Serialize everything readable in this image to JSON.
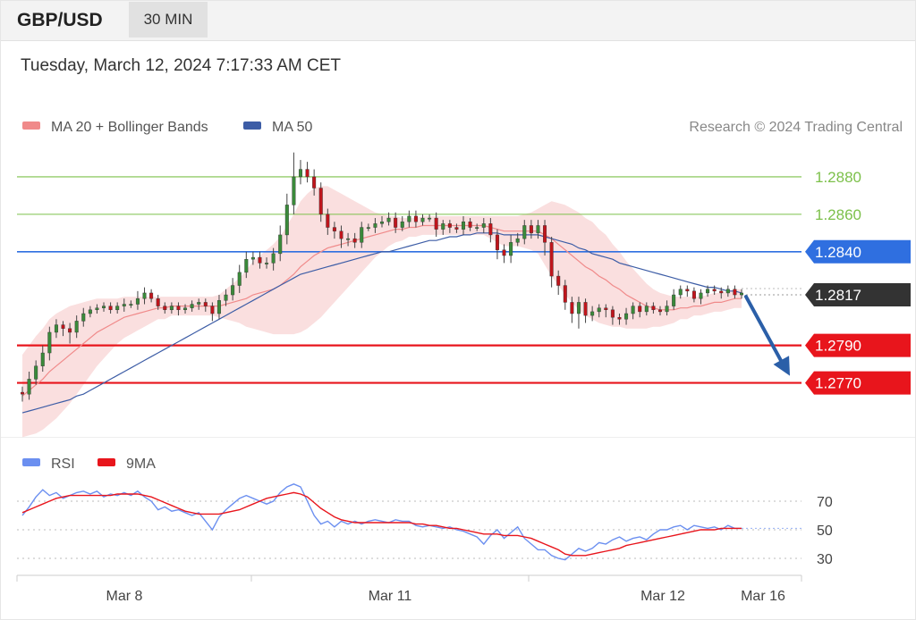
{
  "header": {
    "pair": "GBP/USD",
    "timeframe": "30 MIN"
  },
  "timestamp": "Tuesday, March 12, 2024 7:17:33 AM CET",
  "legend": {
    "ma20": "MA 20 + Bollinger Bands",
    "ma50": "MA 50",
    "credit": "Research © 2024 Trading Central",
    "rsi": "RSI",
    "ma9": "9MA"
  },
  "colors": {
    "resistance": "#7cc04a",
    "pivot": "#2f6fe0",
    "support": "#e8151c",
    "current": "#333333",
    "bollinger": "#f6c9c9",
    "ma20": "#f08a8a",
    "ma50": "#3d5da6",
    "rsi": "#6b8ff0",
    "ma9": "#e8151c",
    "candle_up": "#3a8a3a",
    "candle_down": "#c0151c",
    "arrow": "#2b5fa8"
  },
  "chart_data": [
    {
      "type": "candlestick",
      "title": "GBP/USD",
      "ylim": [
        1.2745,
        1.29
      ],
      "x_labels": [
        "Mar 8",
        "Mar 11",
        "Mar 12",
        "Mar 16"
      ],
      "levels": [
        {
          "value": 1.288,
          "label": "1.2880",
          "kind": "resistance"
        },
        {
          "value": 1.286,
          "label": "1.2860",
          "kind": "resistance"
        },
        {
          "value": 1.284,
          "label": "1.2840",
          "kind": "pivot"
        },
        {
          "value": 1.2817,
          "label": "1.2817",
          "kind": "current"
        },
        {
          "value": 1.279,
          "label": "1.2790",
          "kind": "support"
        },
        {
          "value": 1.277,
          "label": "1.2770",
          "kind": "support"
        }
      ],
      "close": [
        1.2764,
        1.2772,
        1.2779,
        1.2786,
        1.2797,
        1.2801,
        1.2799,
        1.2797,
        1.2803,
        1.2807,
        1.2809,
        1.281,
        1.2811,
        1.2809,
        1.2811,
        1.2812,
        1.2812,
        1.2815,
        1.2818,
        1.2815,
        1.2811,
        1.2809,
        1.2811,
        1.2809,
        1.281,
        1.2812,
        1.2813,
        1.2811,
        1.2807,
        1.2814,
        1.2817,
        1.2822,
        1.2829,
        1.2836,
        1.2837,
        1.2834,
        1.2834,
        1.2839,
        1.2849,
        1.2865,
        1.288,
        1.2884,
        1.288,
        1.2874,
        1.286,
        1.2853,
        1.2851,
        1.2847,
        1.2847,
        1.2845,
        1.2853,
        1.2853,
        1.2855,
        1.2856,
        1.2858,
        1.2853,
        1.2856,
        1.2859,
        1.2856,
        1.2858,
        1.2858,
        1.2852,
        1.2855,
        1.2853,
        1.2852,
        1.2856,
        1.2853,
        1.2853,
        1.2855,
        1.2849,
        1.2841,
        1.2838,
        1.2845,
        1.2847,
        1.2854,
        1.285,
        1.2854,
        1.2845,
        1.2827,
        1.2822,
        1.2813,
        1.2807,
        1.2813,
        1.2806,
        1.2808,
        1.281,
        1.2809,
        1.2805,
        1.2804,
        1.2807,
        1.2811,
        1.2808,
        1.2811,
        1.2809,
        1.2808,
        1.2811,
        1.2817,
        1.282,
        1.2819,
        1.2815,
        1.2818,
        1.282,
        1.2819,
        1.2818,
        1.282,
        1.2817,
        1.2818
      ],
      "open": [
        1.2765,
        1.2764,
        1.2772,
        1.2779,
        1.2786,
        1.2797,
        1.2801,
        1.2799,
        1.2797,
        1.2803,
        1.2807,
        1.2809,
        1.281,
        1.2811,
        1.2809,
        1.2811,
        1.2812,
        1.2812,
        1.2815,
        1.2818,
        1.2815,
        1.2811,
        1.2809,
        1.2811,
        1.2809,
        1.281,
        1.2812,
        1.2813,
        1.2811,
        1.2807,
        1.2814,
        1.2817,
        1.2822,
        1.2829,
        1.2836,
        1.2837,
        1.2834,
        1.2834,
        1.2839,
        1.2849,
        1.2865,
        1.288,
        1.2884,
        1.288,
        1.2874,
        1.286,
        1.2853,
        1.2851,
        1.2847,
        1.2847,
        1.2845,
        1.2853,
        1.2853,
        1.2855,
        1.2856,
        1.2858,
        1.2853,
        1.2856,
        1.2859,
        1.2856,
        1.2858,
        1.2858,
        1.2852,
        1.2855,
        1.2853,
        1.2852,
        1.2856,
        1.2853,
        1.2853,
        1.2855,
        1.2849,
        1.2841,
        1.2838,
        1.2845,
        1.2847,
        1.2854,
        1.285,
        1.2854,
        1.2845,
        1.2827,
        1.2822,
        1.2813,
        1.2807,
        1.2813,
        1.2806,
        1.2808,
        1.281,
        1.2809,
        1.2805,
        1.2804,
        1.2807,
        1.2811,
        1.2808,
        1.2811,
        1.2809,
        1.2808,
        1.2811,
        1.2817,
        1.282,
        1.2819,
        1.2815,
        1.2818,
        1.282,
        1.2819,
        1.2818,
        1.282,
        1.2817
      ],
      "high_extra": [
        0.0003,
        0.0004,
        0.0003,
        0.0004,
        0.0003,
        0.0003,
        0.0002,
        0.0003,
        0.0003,
        0.0003,
        0.0002,
        0.0002,
        0.0002,
        0.0002,
        0.0002,
        0.0003,
        0.0002,
        0.0004,
        0.0003,
        0.0002,
        0.0002,
        0.0002,
        0.0002,
        0.0002,
        0.0002,
        0.0002,
        0.0002,
        0.0002,
        0.0002,
        0.0003,
        0.0003,
        0.0004,
        0.0004,
        0.0004,
        0.0003,
        0.0003,
        0.0003,
        0.0003,
        0.0005,
        0.0006,
        0.0013,
        0.0005,
        0.0004,
        0.0004,
        0.0003,
        0.0003,
        0.0003,
        0.0003,
        0.0003,
        0.0003,
        0.0003,
        0.0002,
        0.0003,
        0.0003,
        0.0003,
        0.0003,
        0.0003,
        0.0003,
        0.0003,
        0.0002,
        0.0002,
        0.0003,
        0.0002,
        0.0002,
        0.0002,
        0.0003,
        0.0002,
        0.0002,
        0.0003,
        0.0003,
        0.0003,
        0.0003,
        0.0004,
        0.0003,
        0.0003,
        0.0003,
        0.0003,
        0.0003,
        0.0003,
        0.0003,
        0.0003,
        0.0003,
        0.0003,
        0.0002,
        0.0003,
        0.0002,
        0.0002,
        0.0002,
        0.0002,
        0.0003,
        0.0002,
        0.0002,
        0.0002,
        0.0002,
        0.0002,
        0.0003,
        0.0003,
        0.0002,
        0.0002,
        0.0002,
        0.0002,
        0.0002,
        0.0002,
        0.0002,
        0.0002,
        0.0002,
        0.0002
      ],
      "low_extra": [
        0.0004,
        0.0003,
        0.0003,
        0.0003,
        0.0004,
        0.0003,
        0.0004,
        0.0006,
        0.0003,
        0.0003,
        0.0002,
        0.0002,
        0.0002,
        0.0002,
        0.0002,
        0.0003,
        0.0002,
        0.0003,
        0.0003,
        0.0002,
        0.0002,
        0.0002,
        0.0002,
        0.0003,
        0.0002,
        0.0002,
        0.0003,
        0.0003,
        0.0004,
        0.0003,
        0.0003,
        0.0003,
        0.0004,
        0.0003,
        0.0003,
        0.0003,
        0.0003,
        0.0004,
        0.0004,
        0.0005,
        0.0005,
        0.0004,
        0.0003,
        0.0004,
        0.0004,
        0.0004,
        0.0004,
        0.0005,
        0.0004,
        0.0003,
        0.0003,
        0.0002,
        0.0003,
        0.0002,
        0.0002,
        0.0003,
        0.0002,
        0.0003,
        0.0003,
        0.0002,
        0.0002,
        0.0004,
        0.0003,
        0.0003,
        0.0002,
        0.0003,
        0.0002,
        0.0002,
        0.0003,
        0.0004,
        0.0005,
        0.0004,
        0.0004,
        0.0002,
        0.0003,
        0.0003,
        0.0003,
        0.0007,
        0.0006,
        0.0005,
        0.0004,
        0.0005,
        0.0008,
        0.0004,
        0.0003,
        0.0003,
        0.0004,
        0.0004,
        0.0003,
        0.0003,
        0.0003,
        0.0003,
        0.0002,
        0.0002,
        0.0002,
        0.0002,
        0.0002,
        0.0002,
        0.0003,
        0.0002,
        0.0003,
        0.0002,
        0.0002,
        0.0003,
        0.0002,
        0.0002,
        0.0002
      ],
      "ma20": [
        1.2763,
        1.2766,
        1.2769,
        1.2772,
        1.2776,
        1.2779,
        1.2782,
        1.2785,
        1.2788,
        1.2791,
        1.2794,
        1.2797,
        1.2799,
        1.2801,
        1.2803,
        1.2805,
        1.2806,
        1.2807,
        1.2808,
        1.2809,
        1.281,
        1.281,
        1.2811,
        1.2811,
        1.2811,
        1.2811,
        1.2811,
        1.2811,
        1.2811,
        1.2811,
        1.2812,
        1.2813,
        1.2814,
        1.2815,
        1.2817,
        1.2818,
        1.2819,
        1.282,
        1.2822,
        1.2825,
        1.2828,
        1.2832,
        1.2835,
        1.2838,
        1.284,
        1.2842,
        1.2843,
        1.2844,
        1.2845,
        1.2846,
        1.2847,
        1.2848,
        1.2849,
        1.285,
        1.2851,
        1.2852,
        1.2852,
        1.2853,
        1.2853,
        1.2854,
        1.2854,
        1.2854,
        1.2854,
        1.2854,
        1.2854,
        1.2854,
        1.2854,
        1.2854,
        1.2854,
        1.2853,
        1.2852,
        1.2851,
        1.2851,
        1.2851,
        1.2851,
        1.2851,
        1.2851,
        1.2849,
        1.2847,
        1.2844,
        1.2841,
        1.2838,
        1.2835,
        1.2832,
        1.283,
        1.2827,
        1.2825,
        1.2822,
        1.282,
        1.2817,
        1.2815,
        1.2813,
        1.2811,
        1.281,
        1.2809,
        1.2809,
        1.2809,
        1.281,
        1.281,
        1.2811,
        1.2811,
        1.2812,
        1.2813,
        1.2813,
        1.2814,
        1.2815,
        1.2815
      ],
      "band_half_width": [
        0.0022,
        0.0024,
        0.0026,
        0.0027,
        0.0028,
        0.0028,
        0.0027,
        0.0026,
        0.0024,
        0.0022,
        0.002,
        0.0018,
        0.0016,
        0.0014,
        0.0012,
        0.0011,
        0.001,
        0.0009,
        0.0008,
        0.0007,
        0.0006,
        0.0006,
        0.0005,
        0.0005,
        0.0005,
        0.0005,
        0.0005,
        0.0005,
        0.0005,
        0.0006,
        0.0008,
        0.001,
        0.0012,
        0.0015,
        0.0018,
        0.002,
        0.0022,
        0.0024,
        0.0026,
        0.0029,
        0.0032,
        0.0035,
        0.0036,
        0.0036,
        0.0035,
        0.0033,
        0.003,
        0.0027,
        0.0024,
        0.0021,
        0.0018,
        0.0015,
        0.0012,
        0.001,
        0.0008,
        0.0007,
        0.0006,
        0.0005,
        0.0005,
        0.0005,
        0.0005,
        0.0005,
        0.0005,
        0.0005,
        0.0005,
        0.0005,
        0.0005,
        0.0005,
        0.0005,
        0.0006,
        0.0007,
        0.0008,
        0.0008,
        0.0008,
        0.0009,
        0.001,
        0.0012,
        0.0016,
        0.002,
        0.0022,
        0.0024,
        0.0025,
        0.0026,
        0.0026,
        0.0026,
        0.0025,
        0.0024,
        0.0022,
        0.002,
        0.0018,
        0.0016,
        0.0014,
        0.0012,
        0.001,
        0.0009,
        0.0008,
        0.0007,
        0.0006,
        0.0006,
        0.0005,
        0.0005,
        0.0005,
        0.0005,
        0.0005,
        0.0005,
        0.0005,
        0.0005
      ],
      "ma50": [
        1.2754,
        1.2755,
        1.2756,
        1.2757,
        1.2758,
        1.2759,
        1.276,
        1.2761,
        1.2763,
        1.2764,
        1.2766,
        1.2768,
        1.277,
        1.2772,
        1.2774,
        1.2776,
        1.2778,
        1.278,
        1.2782,
        1.2784,
        1.2786,
        1.2788,
        1.279,
        1.2792,
        1.2794,
        1.2796,
        1.2798,
        1.28,
        1.2802,
        1.2804,
        1.2806,
        1.2808,
        1.281,
        1.2812,
        1.2814,
        1.2816,
        1.2818,
        1.282,
        1.2822,
        1.2824,
        1.2826,
        1.2828,
        1.2829,
        1.283,
        1.2831,
        1.2832,
        1.2833,
        1.2834,
        1.2835,
        1.2836,
        1.2837,
        1.2838,
        1.2839,
        1.284,
        1.284,
        1.2841,
        1.2842,
        1.2843,
        1.2844,
        1.2845,
        1.2846,
        1.2846,
        1.2847,
        1.2848,
        1.2848,
        1.2849,
        1.2849,
        1.285,
        1.285,
        1.285,
        1.285,
        1.2849,
        1.2849,
        1.2849,
        1.2849,
        1.2849,
        1.2849,
        1.2848,
        1.2847,
        1.2846,
        1.2845,
        1.2844,
        1.2842,
        1.2841,
        1.2839,
        1.2838,
        1.2837,
        1.2836,
        1.2834,
        1.2833,
        1.2832,
        1.2831,
        1.283,
        1.2829,
        1.2828,
        1.2827,
        1.2826,
        1.2825,
        1.2824,
        1.2823,
        1.2822,
        1.2821,
        1.2821,
        1.282,
        1.2819,
        1.2819,
        1.2818
      ],
      "forecast_arrow": {
        "from": 1.2817,
        "to": 1.277
      }
    },
    {
      "type": "line",
      "title": "RSI",
      "ylim": [
        20,
        85
      ],
      "y_ticks": [
        70,
        50,
        30
      ],
      "series": [
        {
          "name": "RSI",
          "values": [
            60,
            66,
            73,
            78,
            74,
            76,
            72,
            74,
            76,
            77,
            75,
            77,
            73,
            75,
            74,
            76,
            74,
            77,
            73,
            70,
            64,
            66,
            63,
            64,
            62,
            60,
            62,
            56,
            50,
            59,
            64,
            68,
            72,
            74,
            72,
            70,
            68,
            70,
            76,
            80,
            82,
            80,
            70,
            60,
            54,
            56,
            52,
            56,
            54,
            56,
            54,
            56,
            57,
            56,
            55,
            57,
            56,
            56,
            53,
            52,
            53,
            52,
            51,
            52,
            50,
            49,
            47,
            45,
            40,
            46,
            50,
            44,
            48,
            52,
            44,
            40,
            36,
            36,
            32,
            30,
            29,
            33,
            37,
            35,
            37,
            41,
            40,
            43,
            45,
            42,
            44,
            45,
            43,
            47,
            50,
            50,
            52,
            53,
            50,
            53,
            52,
            51,
            52,
            50,
            53,
            51,
            51
          ]
        },
        {
          "name": "9MA",
          "values": [
            62,
            64,
            66,
            68,
            70,
            72,
            73,
            74,
            74,
            74,
            74,
            74,
            74,
            74,
            75,
            75,
            75,
            75,
            74,
            73,
            71,
            69,
            67,
            65,
            63,
            62,
            61,
            61,
            61,
            61,
            62,
            63,
            64,
            66,
            68,
            70,
            72,
            73,
            74,
            75,
            76,
            75,
            73,
            69,
            65,
            62,
            59,
            57,
            56,
            55,
            55,
            55,
            55,
            55,
            55,
            55,
            55,
            55,
            54,
            54,
            53,
            53,
            52,
            51,
            51,
            50,
            49,
            48,
            47,
            47,
            47,
            46,
            46,
            46,
            45,
            44,
            42,
            40,
            38,
            36,
            33,
            32,
            32,
            32,
            33,
            34,
            35,
            36,
            37,
            39,
            40,
            41,
            42,
            43,
            44,
            45,
            46,
            47,
            48,
            49,
            50,
            50,
            50,
            51,
            51,
            51,
            51
          ]
        }
      ]
    }
  ]
}
